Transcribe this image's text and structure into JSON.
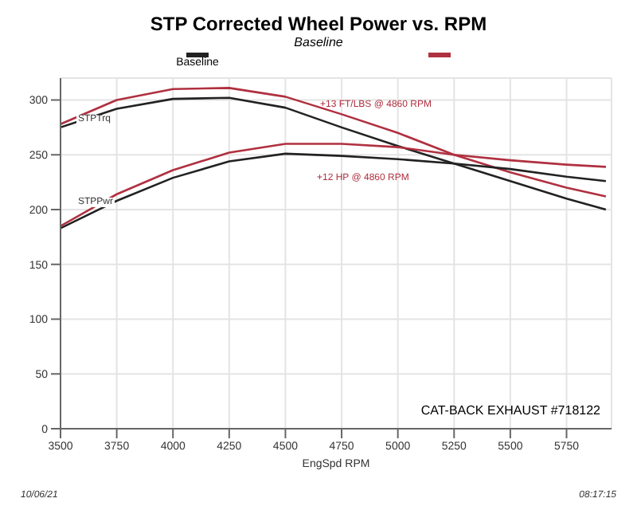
{
  "chart_data": {
    "type": "line",
    "title": "STP Corrected Wheel Power vs. RPM",
    "subtitle": "Baseline",
    "xlabel": "EngSpd RPM",
    "x": [
      3500,
      3750,
      4000,
      4250,
      4500,
      4750,
      5000,
      5250,
      5500,
      5750,
      5925
    ],
    "series": [
      {
        "name": "Baseline",
        "color": "#222222",
        "values": [
          275,
          292,
          301,
          302,
          293,
          275,
          258,
          242,
          226,
          210,
          200
        ]
      },
      {
        "color": "#b03040",
        "values": [
          278,
          300,
          310,
          311,
          303,
          287,
          270,
          250,
          234,
          220,
          212
        ]
      },
      {
        "color": "#222222",
        "values": [
          183,
          208,
          229,
          244,
          251,
          249,
          246,
          242,
          237,
          230,
          226
        ]
      },
      {
        "color": "#b03040",
        "values": [
          185,
          214,
          236,
          252,
          260,
          260,
          257,
          250,
          245,
          241,
          239
        ]
      }
    ],
    "xlim": [
      3500,
      5950
    ],
    "xticks": [
      3500,
      3750,
      4000,
      4250,
      4500,
      4750,
      5000,
      5250,
      5500,
      5750
    ],
    "ylim": [
      0,
      320
    ],
    "yticks": [
      0,
      50,
      100,
      150,
      200,
      250,
      300
    ],
    "grid": true,
    "legend": "top",
    "marker": "none",
    "line_style": "solid",
    "annotations": [
      "+13 FT/LBS @ 4860 RPM",
      "+12 HP @ 4860 RPM",
      "STPTrq",
      "STPPwr",
      "CAT-BACK EXHAUST #718122",
      "10/06/21",
      "08:17:15"
    ]
  }
}
